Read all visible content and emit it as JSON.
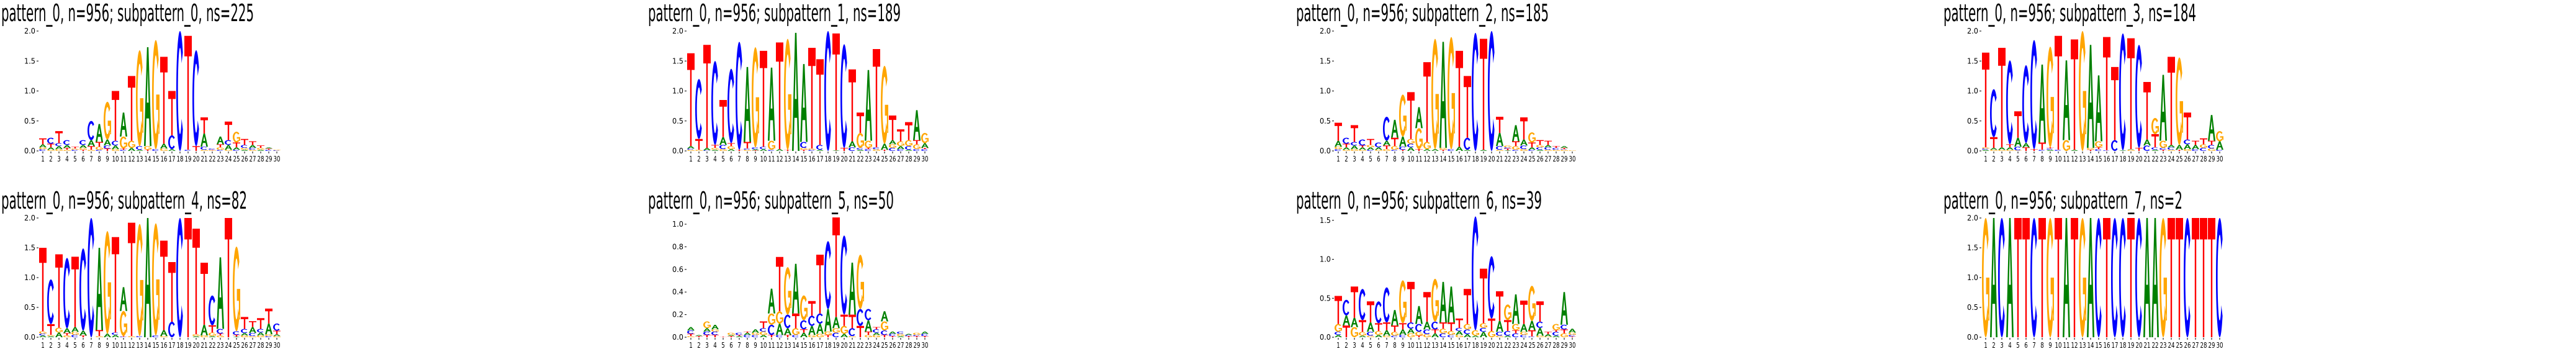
{
  "colors": {
    "A": "#008000",
    "C": "#0000ff",
    "G": "#ffa500",
    "T": "#ff0000"
  },
  "chart_data": [
    {
      "type": "sequence-logo",
      "title": "pattern_0, n=956; subpattern_0, ns=225",
      "ylim": [
        0,
        2.0
      ],
      "yticks": [
        0.0,
        0.5,
        1.0,
        1.5,
        2.0
      ],
      "positions": [
        "C.03 G.03 A.05 T.1",
        "G.02 A.04 T.06 C.1",
        "G.03 A.05 C.05 T.2",
        "G.02 T.03 A.05 C.08",
        "C.02 G.02 T.03",
        "T.02 G.03 A.05 C.08",
        "G.02 T.06 A.1 C.32",
        "C.02 G.05 T.08 A.3",
        "T.04 C.05 A.1 G.63",
        "G.03 A.06 C.08 T.83",
        "C.02 T.02 G.2 A.4",
        "A.05 G.12 T1.08",
        "A.02 C.06 G1.6",
        "T.02 G.06 A1.65",
        "C.03 G1.82",
        "G.04 A.08 T1.45",
        "A.03 C.23 T.74",
        "C2.0",
        "C.02 T1.9",
        "T.08 C1.6",
        "G.02 C.05 A.22 T.27",
        "G.01 T.01 C.02",
        "C.02 G.04 T.05 A.13",
        "G.02 A.08 C.08 T.31",
        "C.02 A.04 T.08 G.18",
        "A.02 G.03 C.05 T.1",
        "G.02 C.03 A.05 T.06",
        "A.02 G.03 T.04",
        "C.02 T.02 A.02",
        "C.01 G.01"
      ]
    },
    {
      "type": "sequence-logo",
      "title": "pattern_0, n=956; subpattern_1, ns=189",
      "ylim": [
        0,
        2.0
      ],
      "yticks": [
        0.0,
        0.5,
        1.0,
        1.5,
        2.0
      ],
      "positions": [
        "G.02 C.02 A.04 T1.55",
        "G.02 T.18 C1.0",
        "C.01 A.04 T1.72",
        "A.02 G.03 T.05 C1.4",
        "G.03 C.07 A.13 T.62",
        "A.03 G.05 T.05 C1.24",
        "T.02 C1.8",
        "G.02 C.02 T.11 A1.25",
        "T.01 A.02 C.03 G1.67",
        "A.03 C.04 T1.6",
        "C.02 G.15 A1.22",
        "A.03 T1.78",
        "T.02 G1.85",
        "A1.97",
        "T.02 G.03 C.1 A1.3",
        "C.02 G.02 T1.68",
        "A.02 C.08 T1.43",
        "C2.0",
        "A.01 T1.95",
        "T.05 C1.73",
        "C.06 A.1 T1.2",
        "A.02 C.03 G.25 T.34",
        "C.03 T.02 G.12 A1.18",
        "G.03 C.03 T1.64",
        "T.02 A.1 G1.3",
        "C.05 G.06 A.07 T.41",
        "C.03 A.05 G.08 T.2",
        "A.02 C.06 G.1 T.3",
        "C.03 G.08 T.07 A.5",
        "C.03 T.02 A.08 G.17"
      ]
    },
    {
      "type": "sequence-logo",
      "title": "pattern_0, n=956; subpattern_2, ns=185",
      "ylim": [
        0,
        2.0
      ],
      "yticks": [
        0.0,
        0.5,
        1.0,
        1.5,
        2.0
      ],
      "positions": [
        "C.03 G.04 A.1 T.3",
        "G.02 A.04 T.06 C.1",
        "G.03 A.06 C.06 T.28",
        "G.02 A.04 T.03 C.1",
        "C.02 A.04 G.04 T.1",
        "G.02 A.04 C.08",
        "G.03 T.06 A.08 C.4",
        "C.02 G.06 T.14 A.3",
        "T.02 C.05 A.17 G.7",
        "A.06 C.06 G.08 T.78",
        "T.03 G.35 A.35",
        "A.03 G.12 T1.33",
        "A.03 G1.84",
        "T.02 G.03 A1.77",
        "C.03 G1.87",
        "A.07 T1.6",
        "A.02 C.2 T1.03",
        "C1.97",
        "A.02 T1.85",
        "C2.0",
        "G.02 C.06 A.22 T.27",
        "A.01 T.03 C.02 G.03",
        "C.02 G.06 T.08 A.27",
        "G.03 C.06 A.1 T.37",
        "C.02 A.04 T.08 G.17",
        "A.02 C.04 G.04 T.08",
        "G.02 C.04 A.04 T.07",
        "G.02 C.03 T.03",
        "G.02 C.01 T.02 A.03",
        "G.01"
      ]
    },
    {
      "type": "sequence-logo",
      "title": "pattern_0, n=956; subpattern_3, ns=184",
      "ylim": [
        0,
        2.0
      ],
      "yticks": [
        0.0,
        0.5,
        1.0,
        1.5,
        2.0
      ],
      "positions": [
        "A.02 C.02 G.02 T1.58",
        "G.02 A.03 T.18 C.8",
        "G.02 A.04 T1.66",
        "G.02 A.04 T.05 C1.4",
        "G.01 C.06 A.15 T.44",
        "T.06 A.07 C1.3",
        "T.03 C1.82",
        "C.02 T.12 A1.3",
        "A.02 C.02 T.02 G1.68",
        "C.02 T1.9",
        "G.18 A1.33",
        "A.02 T1.84",
        "G2.0",
        "T.02 G.03 A1.72",
        "C.03 T.03 G.1 A1.1",
        "C.01 T1.89",
        "C.18 T1.22",
        "A.01 C1.95",
        "G.02 A.01 T1.85",
        "T.05 C1.72",
        "C.09 A.1 T.96",
        "A.02 C.04 T.22 G.27",
        "T.02 C.03 G.12 A1.1",
        "G.02 C.04 A.04 T1.47",
        "T.02 A.08 G1.46",
        "G.03 A.08 C.08 T.45",
        "C.03 A.07 T.07",
        "C.05 G.06 T.1",
        "G.04 C.06 T.07 A.43",
        "C.02 A.14 G.17"
      ]
    },
    {
      "type": "sequence-logo",
      "title": "pattern_0, n=956; subpattern_4, ns=82",
      "ylim": [
        0,
        2.0
      ],
      "yticks": [
        0.0,
        0.5,
        1.0,
        1.5,
        2.0
      ],
      "positions": [
        "A.03 C.03 G.04 T1.4",
        "A.02 G.02 T.18 C.75",
        "A.08 G.08 T1.23",
        "G.03 T.04 A.08 C1.18",
        "C.04 G.05 A.08 T1.18",
        "T.03 A.08 C1.38",
        "C2.0",
        "G.02 T.1 A1.38",
        "A.06 G1.72",
        "A.04 C.04 T1.6",
        "C.01 T.01 G.42 A.4",
        "G.02 T1.9",
        "C.02 G1.88",
        "A2.0",
        "C.03 G1.88",
        "G.02 A.1 T1.5",
        "C.26 T1.0",
        "C2.0",
        "T2.0",
        "A.02 G.03 T1.77",
        "G.03 A.18 T1.04",
        "A.02 G.06 T.12 C.5",
        "G.03 T.03 C.08 A1.2",
        "T2.0",
        "A.01 T.03 C.06 G1.42",
        "G.03 A.04 C.07 T.2",
        "G.02 C.05 A.1 T.1",
        "G.03 A.05 C.06 T.18",
        "C.02 G.03 A.18 T.25",
        "G.02 A.03 T.06 C.12"
      ]
    },
    {
      "type": "sequence-logo",
      "title": "pattern_0, n=956; subpattern_5, ns=50",
      "ylim": [
        0,
        1.055
      ],
      "yticks": [
        0.0,
        0.2,
        0.4,
        0.6,
        0.8,
        1.0
      ],
      "positions": [
        "G.01 T.02 C.03 A.03",
        "T.01 A.01",
        "T.02 C.03 A.03 G.06",
        "T.02 C.03 G.02 A.04",
        "T.005",
        "T.01 A.01 G.02",
        "A.01 T.01 C.02",
        "C.02 A.02 T.01",
        "C.02 G.02 A.03",
        "A.02 G.03 C.03 T.06",
        "T.02 C.09 G.1 A.22",
        "C.02 A.1 G.11 T.48",
        "T.02 A.06 C.12 G.42",
        "C.02 G.06 T.13 A.44",
        "A.04 T.03 C.08 G.22",
        "G.02 A.08 C.09 T.13",
        "G.03 A.09 C.09 T.52",
        "T.02 G.03 A.2 C.6",
        "C.04 G.04 A.1 T.88",
        "A.03 G.07 T.1 C.7",
        "G.01 C.07 T.12 A.46",
        "T.1 C.15 G.48",
        "G.02 T.03 A.1 C.1",
        "G.02 A.02 C.03 T.02",
        "T.02 C.04 G.08 A.09",
        "T.01 C.02 A.02",
        "A.01 G.02 C.02",
        "T.01 C.01 A.01",
        "T.01 C.01 G.02",
        "T.01 C.02 A.02"
      ]
    },
    {
      "type": "sequence-logo",
      "title": "pattern_0, n=956; subpattern_6, ns=39",
      "ylim": [
        0,
        1.53
      ],
      "yticks": [
        0.0,
        0.5,
        1.0,
        1.5
      ],
      "positions": [
        "A.03 C.04 G.1 T.36",
        "T.15 A.13 C.2",
        "G.13 A.12 T.4",
        "A.02 G.05 T.15 C.4",
        "G.02 C.05 A.12 T.27",
        "A.03 G.05 T.1 C.28",
        "G.02 A.07 T.1 C.45",
        "C.02 G.05 T.08 A.2",
        "C.03 A.07 T.08 G.55",
        "G.05 A.06 C.08 T.52",
        "T.02 G.05 C.1 A.23",
        "G.04 C.06 A.1 T.38",
        "A.05 T.05 C.1 G.55",
        "C.05 G.06 T.08 A.52",
        "C.03 G.05 T.11 A.46",
        "G.03 A.05 C.04 T.12",
        "A.04 C.06 G.07 T.45",
        "A.02 G.07 C1.46",
        "A.07 C.05 G.06 T.7",
        "G.08 T.16 C.8",
        "G.02 C.05 A.14 T.38",
        "A.02 C.06 T.14 G.2",
        "C.05 T.04 G.08 A.38",
        "C.03 G.04 A.1 T.3",
        "C.01 T.08 A.12 G.45",
        "G.02 A.1 C.08 T.26",
        "G.01 A.03 T.03",
        "A.02 C.05 T.02 G.08",
        "G.05 T.05 C.06 A.42",
        "T.01 C.02 G.03 A.05"
      ]
    },
    {
      "type": "sequence-logo",
      "title": "pattern_0, n=956; subpattern_7, ns=2",
      "ylim": [
        0,
        2.0
      ],
      "yticks": [
        0.0,
        0.5,
        1.0,
        1.5,
        2.0
      ],
      "positions": [
        "G2",
        "A2",
        "C2",
        "A2",
        "T2",
        "T2",
        "C2",
        "T2",
        "G2",
        "T2",
        "A2",
        "T2",
        "G2",
        "A2",
        "C2",
        "T2",
        "C2",
        "C2",
        "T2",
        "C2",
        "A2",
        "A2",
        "G2",
        "T2",
        "T2",
        "C2",
        "T2",
        "T2",
        "T2",
        "C2"
      ]
    }
  ]
}
